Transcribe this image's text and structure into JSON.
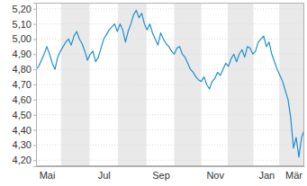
{
  "chart_data": {
    "type": "line",
    "categories": [
      null,
      null,
      null,
      null,
      "Mai",
      null,
      null,
      null,
      null,
      null,
      null,
      null,
      null,
      null,
      null,
      null,
      null,
      null,
      null,
      null,
      null,
      null,
      null,
      null,
      null,
      "Jul",
      null,
      null,
      null,
      null,
      null,
      null,
      null,
      null,
      null,
      null,
      null,
      null,
      null,
      null,
      null,
      null,
      null,
      null,
      null,
      null,
      "Sep",
      null,
      null,
      null,
      null,
      null,
      null,
      null,
      null,
      null,
      null,
      null,
      null,
      null,
      null,
      null,
      null,
      null,
      null,
      null,
      "Nov",
      null,
      null,
      null,
      null,
      null,
      null,
      null,
      null,
      null,
      null,
      null,
      null,
      null,
      null,
      null,
      null,
      null,
      null,
      "Jan",
      null,
      null,
      null,
      null,
      null,
      null,
      null,
      null,
      null,
      "Mär",
      null,
      null,
      null,
      null
    ],
    "values": [
      4.8,
      4.82,
      4.86,
      4.9,
      4.95,
      4.9,
      4.84,
      4.8,
      4.88,
      4.92,
      4.95,
      4.98,
      5.0,
      4.96,
      5.02,
      5.05,
      5.0,
      4.97,
      4.92,
      4.86,
      4.9,
      4.92,
      4.85,
      4.88,
      4.94,
      5.0,
      5.03,
      5.06,
      5.08,
      5.1,
      5.05,
      5.1,
      5.06,
      4.98,
      5.05,
      5.1,
      5.16,
      5.19,
      5.14,
      5.17,
      5.1,
      5.06,
      5.1,
      5.04,
      5.0,
      4.96,
      5.04,
      5.0,
      4.97,
      4.95,
      4.92,
      4.9,
      4.94,
      4.95,
      4.9,
      4.88,
      4.84,
      4.8,
      4.78,
      4.75,
      4.73,
      4.72,
      4.75,
      4.7,
      4.67,
      4.72,
      4.74,
      4.78,
      4.76,
      4.8,
      4.84,
      4.82,
      4.87,
      4.9,
      4.85,
      4.9,
      4.93,
      4.88,
      4.95,
      4.94,
      4.9,
      4.92,
      4.98,
      5.0,
      5.02,
      4.95,
      4.98,
      4.9,
      4.85,
      4.8,
      4.76,
      4.72,
      4.66,
      4.6,
      4.48,
      4.28,
      4.35,
      4.22,
      4.35,
      4.4
    ],
    "color": "#1f8fcf",
    "ylim": [
      4.16,
      5.24
    ],
    "yticks": [
      {
        "value": 4.2,
        "label": "4,20"
      },
      {
        "value": 4.3,
        "label": "4,30"
      },
      {
        "value": 4.4,
        "label": "4,40"
      },
      {
        "value": 4.5,
        "label": "4,50"
      },
      {
        "value": 4.6,
        "label": "4,60"
      },
      {
        "value": 4.7,
        "label": "4,70"
      },
      {
        "value": 4.8,
        "label": "4,80"
      },
      {
        "value": 4.9,
        "label": "4,90"
      },
      {
        "value": 5.0,
        "label": "5,00"
      },
      {
        "value": 5.1,
        "label": "5,10"
      },
      {
        "value": 5.2,
        "label": "5,20"
      }
    ],
    "grid": true
  }
}
